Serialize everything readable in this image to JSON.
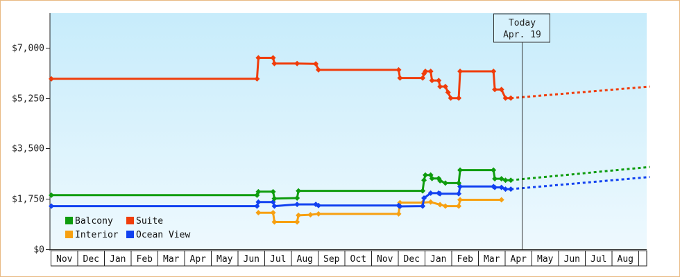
{
  "chart_data": {
    "type": "line",
    "title": "",
    "xlabel": "",
    "ylabel": "",
    "x_axis_categories": [
      "Nov",
      "Dec",
      "Jan",
      "Feb",
      "Mar",
      "Apr",
      "May",
      "Jun",
      "Jul",
      "Aug",
      "Sep",
      "Oct",
      "Nov",
      "Dec",
      "Jan",
      "Feb",
      "Mar",
      "Apr",
      "May",
      "Jun",
      "Jul",
      "Aug"
    ],
    "y_ticks": [
      "$0",
      "$1,750",
      "$3,500",
      "$5,250",
      "$7,000"
    ],
    "y_tick_values": [
      0,
      1750,
      3500,
      5250,
      7000
    ],
    "ylim": [
      0,
      8200
    ],
    "grid": false,
    "legend_position": "bottom-left",
    "today_marker": {
      "line1": "Today",
      "line2": "Apr. 19",
      "x_month_index": 17.6
    },
    "series": [
      {
        "name": "Suite",
        "color": "#f03c0a",
        "points": [
          [
            0,
            5920
          ],
          [
            7.7,
            5920
          ],
          [
            7.75,
            6650
          ],
          [
            8.3,
            6650
          ],
          [
            8.35,
            6450
          ],
          [
            9.2,
            6450
          ],
          [
            9.9,
            6440
          ],
          [
            10.0,
            6230
          ],
          [
            13.0,
            6230
          ],
          [
            13.05,
            5950
          ],
          [
            13.9,
            5950
          ],
          [
            13.95,
            6100
          ],
          [
            14.0,
            6180
          ],
          [
            14.2,
            6180
          ],
          [
            14.25,
            5860
          ],
          [
            14.5,
            5860
          ],
          [
            14.55,
            5650
          ],
          [
            14.75,
            5650
          ],
          [
            14.85,
            5450
          ],
          [
            14.95,
            5250
          ],
          [
            15.25,
            5250
          ],
          [
            15.3,
            6180
          ],
          [
            16.55,
            6180
          ],
          [
            16.6,
            5550
          ],
          [
            16.85,
            5550
          ],
          [
            17.0,
            5250
          ],
          [
            17.2,
            5250
          ]
        ],
        "forecast": [
          [
            17.2,
            5250
          ],
          [
            22.4,
            5650
          ]
        ]
      },
      {
        "name": "Balcony",
        "color": "#0e9c0e",
        "points": [
          [
            0,
            1880
          ],
          [
            7.7,
            1880
          ],
          [
            7.75,
            2000
          ],
          [
            8.3,
            2000
          ],
          [
            8.35,
            1760
          ],
          [
            9.2,
            1780
          ],
          [
            9.25,
            2030
          ],
          [
            10.0,
            2030
          ],
          [
            13.0,
            2030
          ],
          [
            13.05,
            2030
          ],
          [
            13.9,
            2030
          ],
          [
            13.95,
            2400
          ],
          [
            14.0,
            2580
          ],
          [
            14.2,
            2580
          ],
          [
            14.25,
            2460
          ],
          [
            14.5,
            2460
          ],
          [
            14.55,
            2380
          ],
          [
            14.75,
            2300
          ],
          [
            15.25,
            2300
          ],
          [
            15.3,
            2750
          ],
          [
            16.55,
            2750
          ],
          [
            16.6,
            2450
          ],
          [
            16.85,
            2450
          ],
          [
            17.0,
            2400
          ],
          [
            17.2,
            2400
          ]
        ],
        "forecast": [
          [
            17.2,
            2400
          ],
          [
            22.4,
            2860
          ]
        ]
      },
      {
        "name": "Interior",
        "color": "#f7a011",
        "points": [
          [
            7.75,
            1270
          ],
          [
            8.3,
            1270
          ],
          [
            8.35,
            950
          ],
          [
            9.2,
            950
          ],
          [
            9.25,
            1180
          ],
          [
            9.7,
            1200
          ],
          [
            10.0,
            1230
          ],
          [
            13.0,
            1230
          ],
          [
            13.05,
            1620
          ],
          [
            13.3,
            1620
          ],
          [
            13.9,
            1620
          ],
          [
            14.2,
            1640
          ],
          [
            14.55,
            1550
          ],
          [
            14.75,
            1500
          ],
          [
            15.25,
            1500
          ],
          [
            15.3,
            1720
          ],
          [
            16.85,
            1720
          ]
        ]
      },
      {
        "name": "Ocean View",
        "color": "#1141f0",
        "points": [
          [
            0,
            1500
          ],
          [
            7.7,
            1500
          ],
          [
            7.75,
            1640
          ],
          [
            8.3,
            1640
          ],
          [
            8.35,
            1500
          ],
          [
            9.2,
            1560
          ],
          [
            9.9,
            1560
          ],
          [
            10.0,
            1520
          ],
          [
            13.0,
            1520
          ],
          [
            13.05,
            1490
          ],
          [
            13.9,
            1500
          ],
          [
            13.95,
            1780
          ],
          [
            14.2,
            1950
          ],
          [
            14.5,
            1950
          ],
          [
            14.55,
            1930
          ],
          [
            14.75,
            1930
          ],
          [
            15.25,
            1930
          ],
          [
            15.3,
            2180
          ],
          [
            16.55,
            2180
          ],
          [
            16.6,
            2150
          ],
          [
            16.85,
            2150
          ],
          [
            17.0,
            2090
          ],
          [
            17.2,
            2090
          ]
        ],
        "forecast": [
          [
            17.2,
            2090
          ],
          [
            22.4,
            2510
          ]
        ]
      }
    ],
    "legend": [
      {
        "name": "Balcony",
        "color": "#0e9c0e"
      },
      {
        "name": "Suite",
        "color": "#f03c0a"
      },
      {
        "name": "Interior",
        "color": "#f7a011"
      },
      {
        "name": "Ocean View",
        "color": "#1141f0"
      }
    ]
  }
}
